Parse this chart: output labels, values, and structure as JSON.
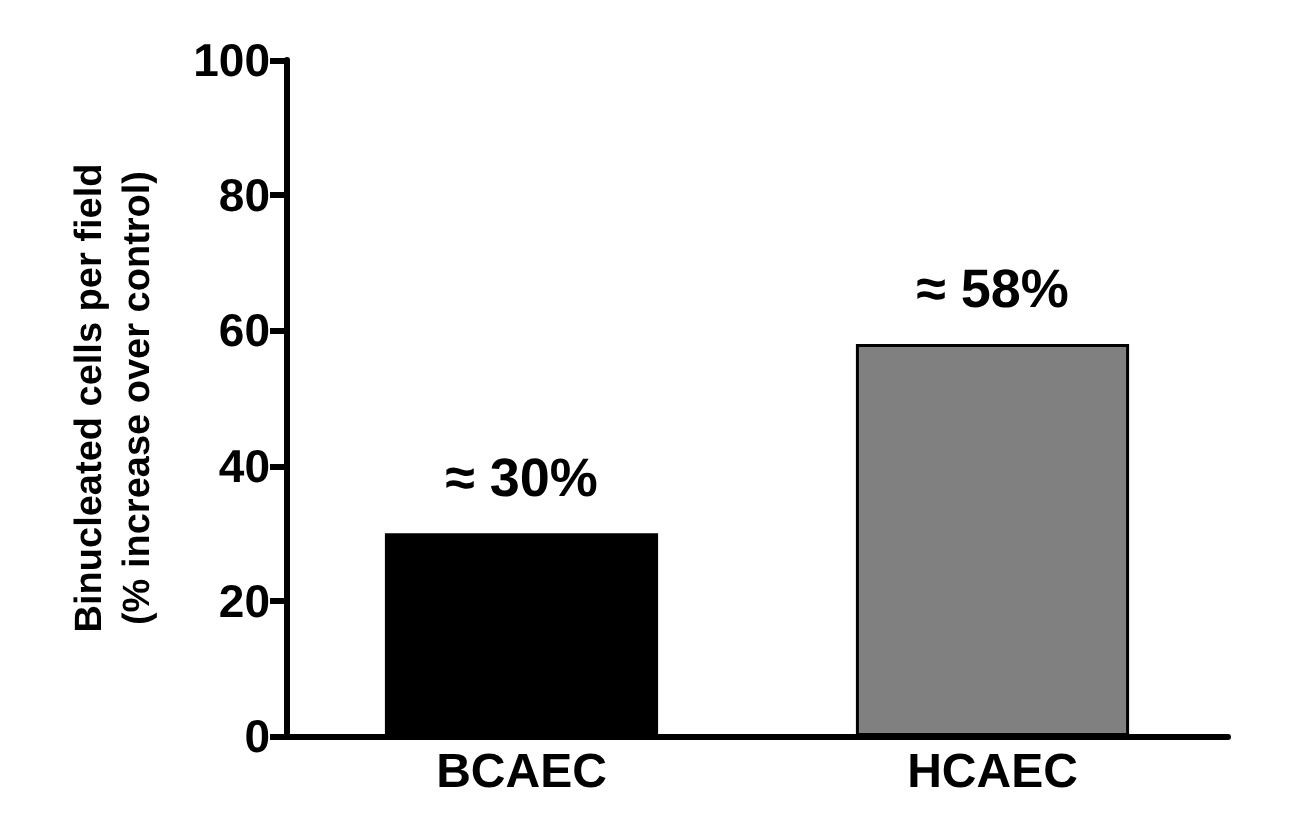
{
  "chart_data": {
    "type": "bar",
    "ylabel": "Binucleated cells per field\n(% increase over control)",
    "categories": [
      "BCAEC",
      "HCAEC"
    ],
    "values": [
      30,
      58
    ],
    "colors": [
      "#000000",
      "#808080"
    ],
    "value_labels": [
      "≈ 30%",
      "≈ 58%"
    ],
    "ylim": [
      0,
      100
    ],
    "yticks": [
      0,
      20,
      40,
      60,
      80,
      100
    ],
    "grid": false
  }
}
